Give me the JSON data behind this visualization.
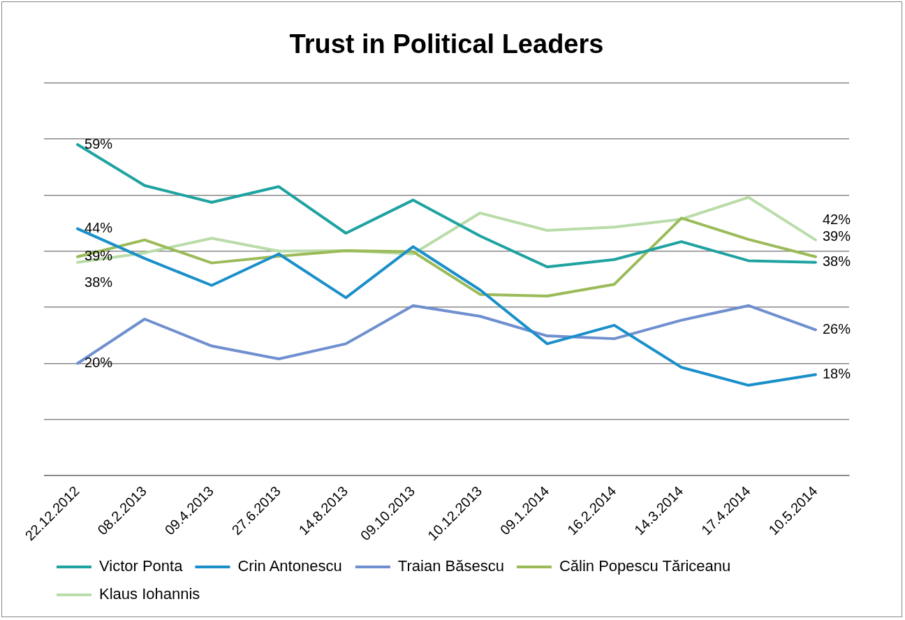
{
  "chart_data": {
    "type": "line",
    "title": "Trust in Political Leaders",
    "categories": [
      "22.12.2012",
      "08.2.2013",
      "09.4.2013",
      "27.6.2013",
      "14.8.2013",
      "09.10.2013",
      "10.12.2013",
      "09.1.2014",
      "16.2.2014",
      "14.3.2014",
      "17.4.2014",
      "10.5.2014"
    ],
    "series": [
      {
        "name": "Victor Ponta",
        "color": "#1fa3a0",
        "values": [
          59,
          51.7,
          48.7,
          51.5,
          43.2,
          49.1,
          42.7,
          37.2,
          38.5,
          41.7,
          38.3,
          38
        ],
        "value_labels": [
          "59%",
          null,
          null,
          null,
          null,
          null,
          null,
          null,
          null,
          null,
          null,
          "38%"
        ]
      },
      {
        "name": "Crin Antonescu",
        "color": "#1a8fc9",
        "values": [
          44,
          38.7,
          33.9,
          39.5,
          31.7,
          40.8,
          33.1,
          23.5,
          26.8,
          19.3,
          16.1,
          18
        ],
        "value_labels": [
          "44%",
          null,
          null,
          null,
          null,
          null,
          null,
          null,
          null,
          null,
          null,
          "18%"
        ]
      },
      {
        "name": "Traian Băsescu",
        "color": "#6f8fcf",
        "values": [
          20,
          27.9,
          23.1,
          20.8,
          23.5,
          30.3,
          28.4,
          24.9,
          24.4,
          27.7,
          30.3,
          26
        ],
        "value_labels": [
          "20%",
          null,
          null,
          null,
          null,
          null,
          null,
          null,
          null,
          null,
          null,
          "26%"
        ]
      },
      {
        "name": "Călin Popescu Tăriceanu",
        "color": "#9bbb59",
        "values": [
          39,
          42,
          37.9,
          39.1,
          40.1,
          39.9,
          32.3,
          32,
          34.1,
          45.9,
          42.1,
          39
        ],
        "value_labels": [
          "39%",
          null,
          null,
          null,
          null,
          null,
          null,
          null,
          null,
          null,
          null,
          "39%"
        ]
      },
      {
        "name": "Klaus Iohannis",
        "color": "#b9dca8",
        "values": [
          38,
          39.7,
          42.3,
          40,
          40.1,
          39.5,
          46.8,
          43.7,
          44.3,
          45.7,
          49.6,
          42
        ],
        "value_labels": [
          "38%",
          null,
          null,
          null,
          null,
          null,
          null,
          null,
          null,
          null,
          null,
          "42%"
        ]
      }
    ],
    "ylim": [
      0,
      70
    ],
    "yticks": [
      {
        "value": 0,
        "label": null
      },
      {
        "value": 10,
        "label": null
      },
      {
        "value": 20,
        "label": null
      },
      {
        "value": 30,
        "label": null
      },
      {
        "value": 40,
        "label": null
      },
      {
        "value": 50,
        "label": null
      },
      {
        "value": 60,
        "label": null
      },
      {
        "value": 70,
        "label": null
      }
    ],
    "grid": "y",
    "legend": "bottom",
    "marker": "none",
    "line_style": "solid",
    "tick_labels": "x"
  }
}
